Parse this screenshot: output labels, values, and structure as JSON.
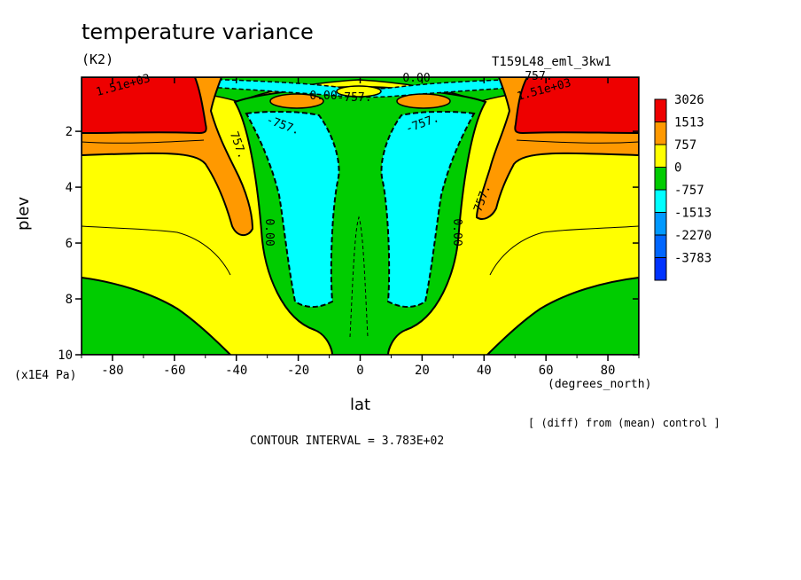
{
  "title": "temperature variance",
  "units": "(K2)",
  "run_label": "T159L48_eml_3kw1",
  "diff_note": "[ (diff) from (mean) control ]",
  "contour_interval": "CONTOUR INTERVAL = 3.783E+02",
  "chart_data": {
    "type": "heatmap",
    "title": "temperature variance",
    "xlabel": "lat",
    "xunits": "(degrees_north)",
    "ylabel": "plev",
    "yunits": "(x1E4 Pa)",
    "xlim": [
      -90,
      90
    ],
    "ylim": [
      10,
      0.06
    ],
    "y_inverted": true,
    "x_ticks": [
      "-80",
      "-60",
      "-40",
      "-20",
      "0",
      "20",
      "40",
      "60",
      "80"
    ],
    "x_tick_values": [
      -80,
      -60,
      -40,
      -20,
      0,
      20,
      40,
      60,
      80
    ],
    "y_ticks": [
      "2",
      "4",
      "6",
      "8",
      "10"
    ],
    "y_tick_values": [
      2,
      4,
      6,
      8,
      10
    ],
    "legend_placement": "right",
    "legend_levels": [
      "3026",
      "1513",
      "757",
      "0",
      "-757",
      "-1513",
      "-2270",
      "-3783"
    ],
    "legend_colors": [
      "#ee0000",
      "#ff9900",
      "#ffff00",
      "#00cc00",
      "#00ffff",
      "#0099ff",
      "#0066ff",
      "#0033ff"
    ],
    "contour_labels": [
      "1.51e+03",
      "1.51e+03",
      "757.",
      "757.",
      "757.",
      "-757.",
      "-757.",
      "-757.",
      "0.00",
      "0.00",
      "0.00",
      "0.00"
    ],
    "colors": {
      "red": "#ee0000",
      "orange": "#ff9900",
      "yellow": "#ffff00",
      "green": "#00cc00",
      "cyan": "#00ffff",
      "blue": "#0099ff"
    }
  }
}
